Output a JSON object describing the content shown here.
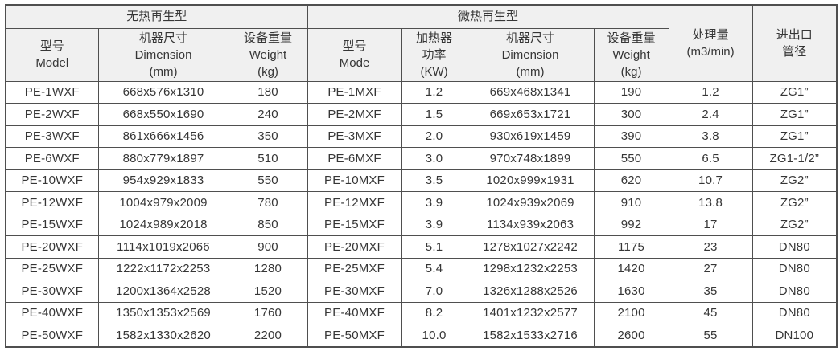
{
  "colors": {
    "header_bg": "#f0f0f0",
    "border": "#4f4f4f",
    "text": "#363636"
  },
  "table": {
    "group_headers": [
      {
        "label": "无热再生型",
        "colspan": 3
      },
      {
        "label": "微热再生型",
        "colspan": 4
      }
    ],
    "column_headers": [
      "型号\nModel",
      "机器尺寸\nDimension\n(mm)",
      "设备重量\nWeight\n(kg)",
      "型号\nMode",
      "加热器\n功率\n(KW)",
      "机器尺寸\nDimension\n(mm)",
      "设备重量\nWeight\n(kg)"
    ],
    "span_headers": [
      "处理量\n(m3/min)",
      "进出口\n管径"
    ],
    "rows": [
      [
        "PE-1WXF",
        "668x576x1310",
        "180",
        "PE-1MXF",
        "1.2",
        "669x468x1341",
        "190",
        "1.2",
        "ZG1”"
      ],
      [
        "PE-2WXF",
        "668x550x1690",
        "240",
        "PE-2MXF",
        "1.5",
        "669x653x1721",
        "300",
        "2.4",
        "ZG1”"
      ],
      [
        "PE-3WXF",
        "861x666x1456",
        "350",
        "PE-3MXF",
        "2.0",
        "930x619x1459",
        "390",
        "3.8",
        "ZG1”"
      ],
      [
        "PE-6WXF",
        "880x779x1897",
        "510",
        "PE-6MXF",
        "3.0",
        "970x748x1899",
        "550",
        "6.5",
        "ZG1-1/2”"
      ],
      [
        "PE-10WXF",
        "954x929x1833",
        "550",
        "PE-10MXF",
        "3.5",
        "1020x999x1931",
        "620",
        "10.7",
        "ZG2”"
      ],
      [
        "PE-12WXF",
        "1004x979x2009",
        "780",
        "PE-12MXF",
        "3.9",
        "1024x939x2069",
        "910",
        "13.8",
        "ZG2”"
      ],
      [
        "PE-15WXF",
        "1024x989x2018",
        "850",
        "PE-15MXF",
        "3.9",
        "1134x939x2063",
        "992",
        "17",
        "ZG2”"
      ],
      [
        "PE-20WXF",
        "1114x1019x2066",
        "900",
        "PE-20MXF",
        "5.1",
        "1278x1027x2242",
        "1175",
        "23",
        "DN80"
      ],
      [
        "PE-25WXF",
        "1222x1172x2253",
        "1280",
        "PE-25MXF",
        "5.4",
        "1298x1232x2253",
        "1420",
        "27",
        "DN80"
      ],
      [
        "PE-30WXF",
        "1200x1364x2528",
        "1520",
        "PE-30MXF",
        "7.0",
        "1326x1288x2526",
        "1630",
        "35",
        "DN80"
      ],
      [
        "PE-40WXF",
        "1350x1353x2569",
        "1760",
        "PE-40MXF",
        "8.2",
        "1401x1232x2577",
        "2100",
        "45",
        "DN80"
      ],
      [
        "PE-50WXF",
        "1582x1330x2620",
        "2200",
        "PE-50MXF",
        "10.0",
        "1582x1533x2716",
        "2600",
        "55",
        "DN100"
      ]
    ]
  }
}
